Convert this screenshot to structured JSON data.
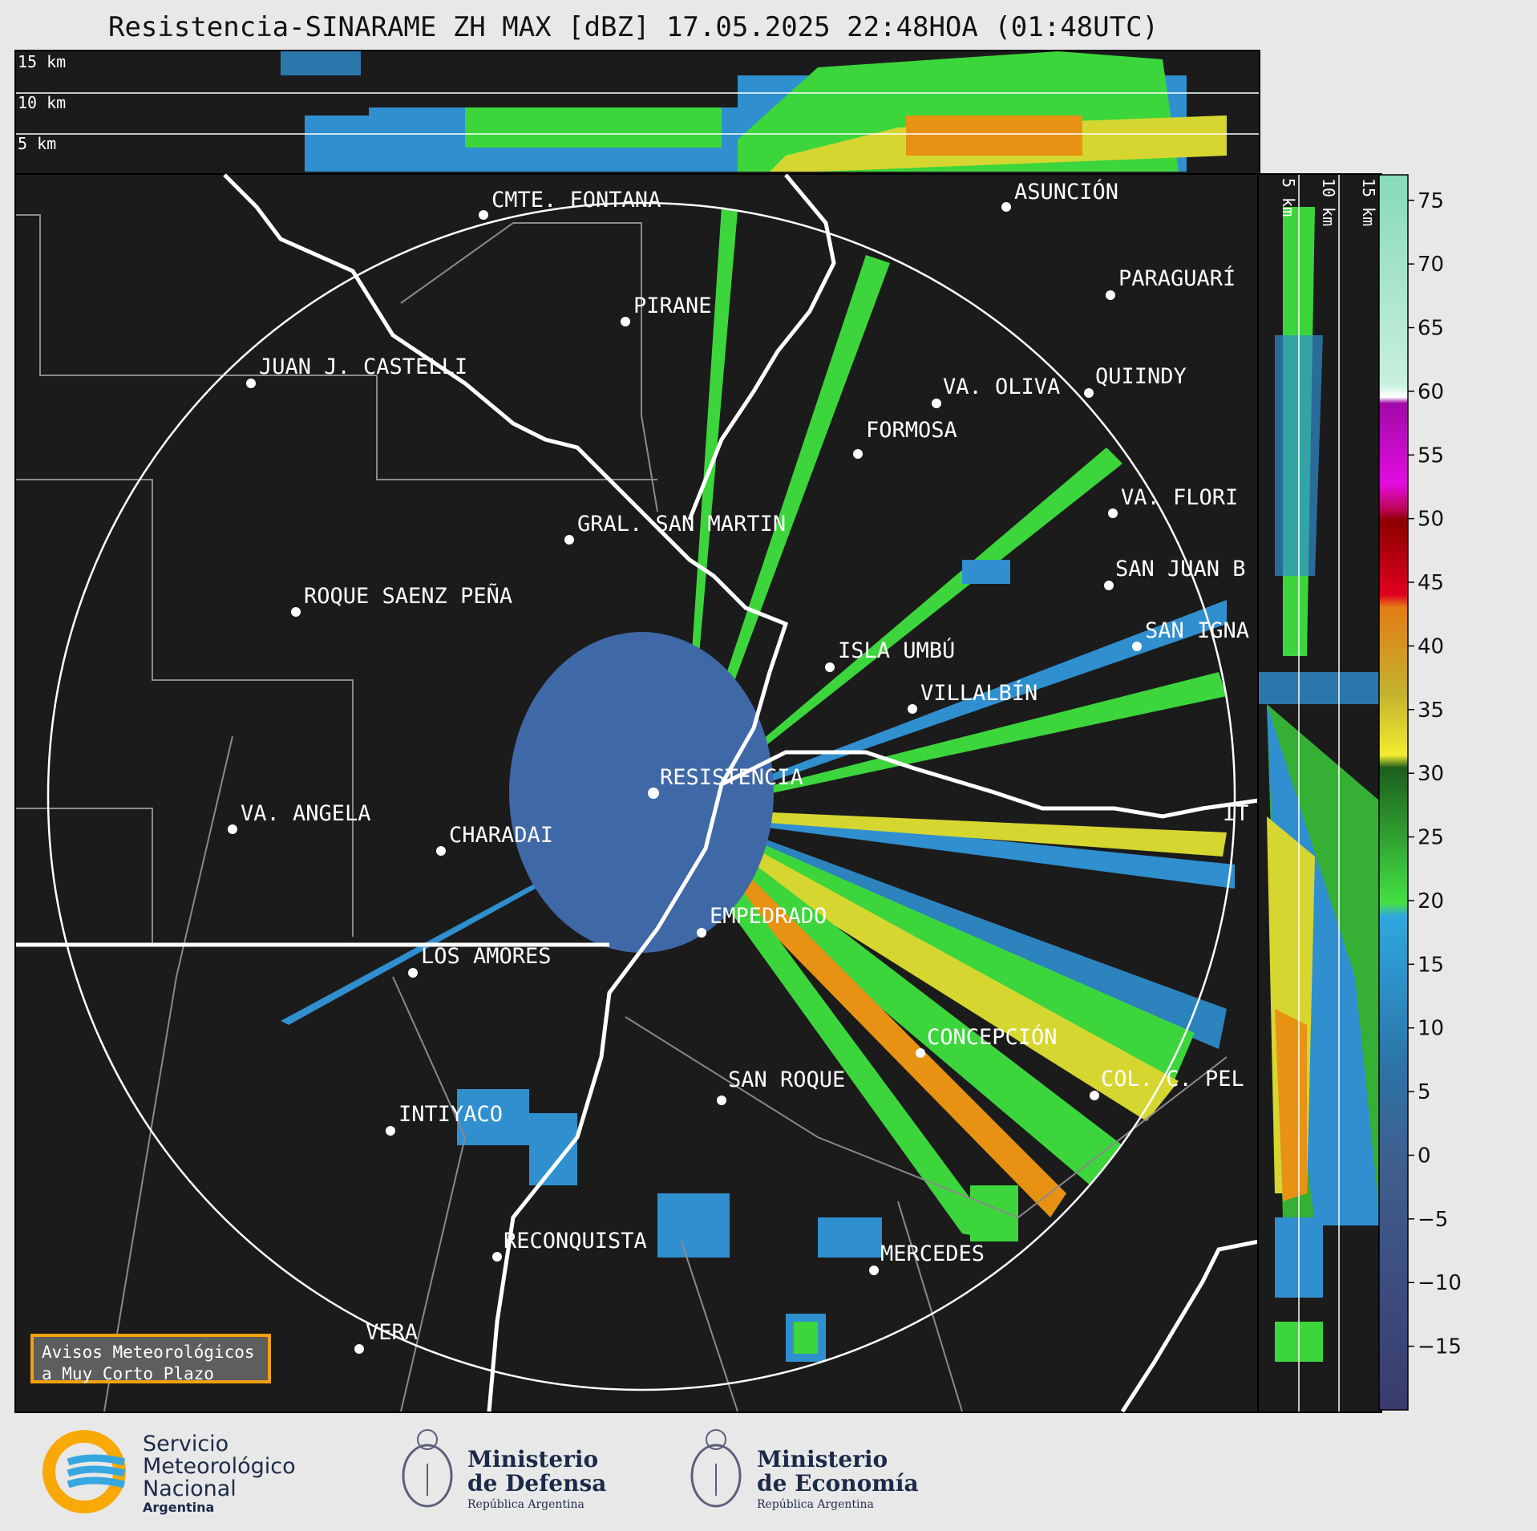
{
  "title": "Resistencia-SINARAME ZH MAX [dBZ] 17.05.2025 22:48HOA (01:48UTC)",
  "top_panel": {
    "height_labels": [
      "15 km",
      "10 km",
      "5 km"
    ]
  },
  "side_panel": {
    "height_labels": [
      "5 km",
      "10 km",
      "15 km"
    ]
  },
  "map": {
    "radar_site": "RESISTENCIA",
    "places": [
      {
        "name": "CMTE. FONTANA"
      },
      {
        "name": "ASUNCIÓN"
      },
      {
        "name": "PIRANE"
      },
      {
        "name": "PARAGUARÍ"
      },
      {
        "name": "JUAN J. CASTELLI"
      },
      {
        "name": "VA. OLIVA"
      },
      {
        "name": "QUIINDY"
      },
      {
        "name": "FORMOSA"
      },
      {
        "name": "VA. FLORI"
      },
      {
        "name": "GRAL. SAN MARTIN"
      },
      {
        "name": "SAN JUAN B"
      },
      {
        "name": "ROQUE SAENZ PEÑA"
      },
      {
        "name": "SAN IGNA"
      },
      {
        "name": "ISLA UMBÚ"
      },
      {
        "name": "VILLALBÍN"
      },
      {
        "name": "RESISTENCIA"
      },
      {
        "name": "VA. ANGELA"
      },
      {
        "name": "CHARADAI"
      },
      {
        "name": "IT"
      },
      {
        "name": "EMPEDRADO"
      },
      {
        "name": "LOS AMORES"
      },
      {
        "name": "CONCEPCIÓN"
      },
      {
        "name": "SAN ROQUE"
      },
      {
        "name": "COL. C. PEL"
      },
      {
        "name": "INTIYACO"
      },
      {
        "name": "RECONQUISTA"
      },
      {
        "name": "MERCEDES"
      },
      {
        "name": "VERA"
      }
    ]
  },
  "colorbar": {
    "ticks": [
      "75",
      "70",
      "65",
      "60",
      "55",
      "50",
      "45",
      "40",
      "35",
      "30",
      "25",
      "20",
      "15",
      "10",
      "5",
      "0",
      "−5",
      "−10",
      "−15"
    ],
    "min": -20,
    "max": 77
  },
  "avisos": {
    "line1": "Avisos Meteorológicos",
    "line2": "a Muy Corto Plazo"
  },
  "footer": {
    "smn": {
      "line1": "Servicio",
      "line2": "Meteorológico",
      "line3": "Nacional",
      "line4": "Argentina"
    },
    "defensa": {
      "line1": "Ministerio",
      "line2": "de Defensa",
      "line3": "República Argentina"
    },
    "economia": {
      "line1": "Ministerio",
      "line2": "de Economía",
      "line3": "República Argentina"
    }
  },
  "colors": {
    "background": "#1b1b1b",
    "text": "#ffffff",
    "accent": "#f2a20c"
  }
}
